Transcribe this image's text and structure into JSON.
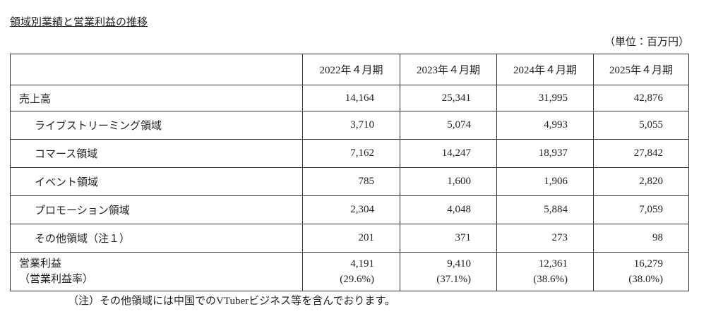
{
  "header": {
    "title": "領域別業績と営業利益の推移",
    "unit": "（単位：百万円）"
  },
  "table": {
    "columns": [
      "2022年４月期",
      "2023年４月期",
      "2024年４月期",
      "2025年４月期"
    ],
    "rows": [
      {
        "label": "売上高",
        "values": [
          "14,164",
          "25,341",
          "31,995",
          "42,876"
        ],
        "segments": [
          {
            "label": "ライブストリーミング領域",
            "values": [
              "3,710",
              "5,074",
              "4,993",
              "5,055"
            ]
          },
          {
            "label": "コマース領域",
            "values": [
              "7,162",
              "14,247",
              "18,937",
              "27,842"
            ]
          },
          {
            "label": "イベント領域",
            "values": [
              "785",
              "1,600",
              "1,906",
              "2,820"
            ]
          },
          {
            "label": "プロモーション領域",
            "values": [
              "2,304",
              "4,048",
              "5,884",
              "7,059"
            ]
          },
          {
            "label": "その他領域（注１）",
            "values": [
              "201",
              "371",
              "273",
              "98"
            ]
          }
        ]
      },
      {
        "label": "営業利益",
        "values": [
          "4,191",
          "9,410",
          "12,361",
          "16,279"
        ],
        "sub_label": "（営業利益率）",
        "sub_values": [
          "(29.6%)",
          "(37.1%)",
          "(38.6%)",
          "(38.0%)"
        ]
      }
    ]
  },
  "note": "（注）その他領域には中国でのVTuberビジネス等を含んでおります。"
}
